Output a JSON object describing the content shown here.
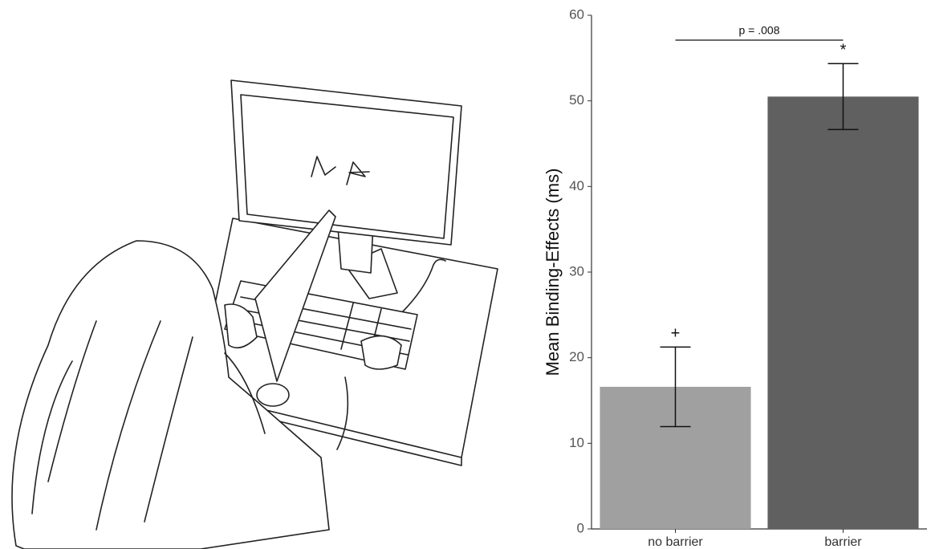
{
  "chart_data": {
    "type": "bar",
    "ylabel": "Mean Binding-Effects (ms)",
    "categories": [
      "no barrier",
      "barrier"
    ],
    "values": [
      16.6,
      50.5
    ],
    "errors": [
      4.65,
      3.85
    ],
    "colors": [
      "#a0a0a0",
      "#606060"
    ],
    "markers": [
      "+",
      "*"
    ],
    "significance": "p = .008",
    "ylim": [
      0,
      60
    ],
    "yticks": [
      0,
      10,
      20,
      30,
      40,
      50,
      60
    ],
    "grid": false
  }
}
